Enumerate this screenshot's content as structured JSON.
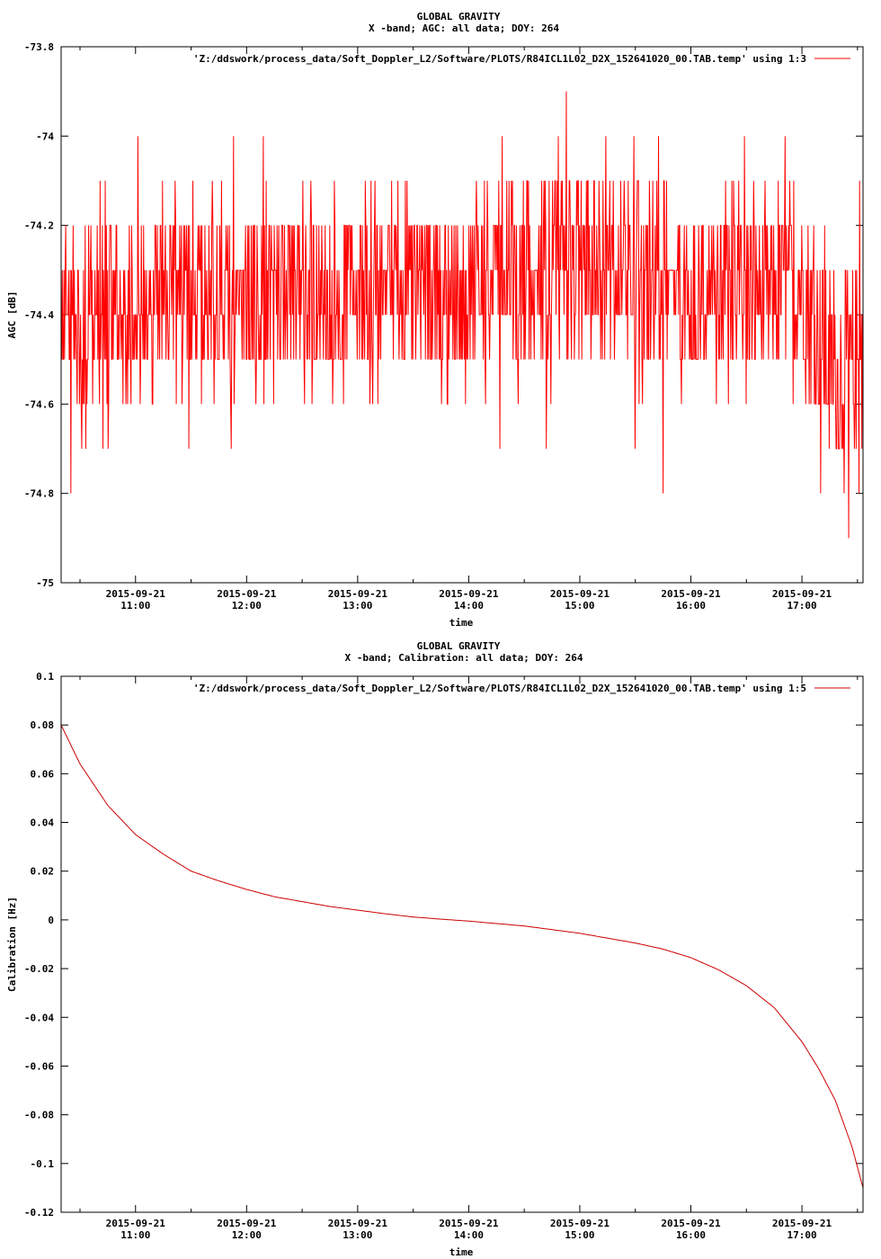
{
  "chart_data": [
    {
      "type": "line",
      "title": "GLOBAL GRAVITY",
      "subtitle": "X -band; AGC: all data; DOY: 264",
      "xlabel": "time",
      "ylabel": "AGC [dB]",
      "ylim": [
        -75,
        -73.8
      ],
      "yticks": [
        -73.8,
        -74,
        -74.2,
        -74.4,
        -74.6,
        -74.8,
        -75
      ],
      "ytick_labels": [
        "-73.8",
        "-74",
        "-74.2",
        "-74.4",
        "-74.6",
        "-74.8",
        "-75"
      ],
      "xlim_hours": [
        10.33,
        17.55
      ],
      "xticks_hours": [
        11,
        12,
        13,
        14,
        15,
        16,
        17
      ],
      "xtick_dates": [
        "2015-09-21",
        "2015-09-21",
        "2015-09-21",
        "2015-09-21",
        "2015-09-21",
        "2015-09-21",
        "2015-09-21"
      ],
      "xtick_times": [
        "11:00",
        "12:00",
        "13:00",
        "14:00",
        "15:00",
        "16:00",
        "17:00"
      ],
      "legend": "top-right",
      "series": [
        {
          "name": "'Z:/ddswork/process_data/Soft_Doppler_L2/Software/PLOTS/R84ICL1L02_D2X_152641020_00.TAB.temp' using 1:3",
          "color": "#ff0000",
          "noise_band": [
            -74.5,
            -74.2
          ],
          "baseline": -74.35,
          "step": 0.1,
          "x_hours": [
            10.33,
            10.5,
            10.7,
            11.0,
            11.5,
            12.0,
            12.5,
            13.0,
            13.5,
            14.0,
            14.5,
            15.0,
            15.5,
            16.0,
            16.5,
            17.0,
            17.3,
            17.55
          ],
          "y": [
            -74.4,
            -74.4,
            -74.4,
            -74.35,
            -74.35,
            -74.35,
            -74.35,
            -74.35,
            -74.35,
            -74.35,
            -74.3,
            -74.3,
            -74.3,
            -74.35,
            -74.35,
            -74.35,
            -74.55,
            -74.5
          ],
          "spikes": [
            {
              "x_hours": 10.42,
              "y": -74.8
            },
            {
              "x_hours": 10.55,
              "y": -74.7
            },
            {
              "x_hours": 11.02,
              "y": -74.0
            },
            {
              "x_hours": 11.48,
              "y": -74.7
            },
            {
              "x_hours": 11.88,
              "y": -74.0
            },
            {
              "x_hours": 11.86,
              "y": -74.7
            },
            {
              "x_hours": 12.15,
              "y": -74.0
            },
            {
              "x_hours": 13.18,
              "y": -74.6
            },
            {
              "x_hours": 14.28,
              "y": -74.7
            },
            {
              "x_hours": 14.3,
              "y": -74.0
            },
            {
              "x_hours": 14.7,
              "y": -74.7
            },
            {
              "x_hours": 14.88,
              "y": -73.9
            },
            {
              "x_hours": 15.5,
              "y": -74.7
            },
            {
              "x_hours": 15.75,
              "y": -74.8
            },
            {
              "x_hours": 16.48,
              "y": -74.0
            },
            {
              "x_hours": 16.85,
              "y": -74.0
            },
            {
              "x_hours": 17.38,
              "y": -74.8
            },
            {
              "x_hours": 17.42,
              "y": -74.9
            },
            {
              "x_hours": 17.52,
              "y": -74.1
            }
          ]
        }
      ]
    },
    {
      "type": "line",
      "title": "GLOBAL GRAVITY",
      "subtitle": "X -band; Calibration: all data; DOY: 264",
      "xlabel": "time",
      "ylabel": "Calibration [Hz]",
      "ylim": [
        -0.12,
        0.1
      ],
      "yticks": [
        0.1,
        0.08,
        0.06,
        0.04,
        0.02,
        0,
        -0.02,
        -0.04,
        -0.06,
        -0.08,
        -0.1,
        -0.12
      ],
      "ytick_labels": [
        "0.1",
        "0.08",
        "0.06",
        "0.04",
        "0.02",
        "0",
        "-0.02",
        "-0.04",
        "-0.06",
        "-0.08",
        "-0.1",
        "-0.12"
      ],
      "xlim_hours": [
        10.33,
        17.55
      ],
      "xticks_hours": [
        11,
        12,
        13,
        14,
        15,
        16,
        17
      ],
      "xtick_dates": [
        "2015-09-21",
        "2015-09-21",
        "2015-09-21",
        "2015-09-21",
        "2015-09-21",
        "2015-09-21",
        "2015-09-21"
      ],
      "xtick_times": [
        "11:00",
        "12:00",
        "13:00",
        "14:00",
        "15:00",
        "16:00",
        "17:00"
      ],
      "legend": "top-right",
      "series": [
        {
          "name": "'Z:/ddswork/process_data/Soft_Doppler_L2/Software/PLOTS/R84ICL1L02_D2X_152641020_00.TAB.temp' using 1:5",
          "color": "#cc0000",
          "x_hours": [
            10.33,
            10.5,
            10.75,
            11.0,
            11.25,
            11.5,
            11.75,
            12.0,
            12.25,
            12.5,
            12.75,
            13.0,
            13.25,
            13.5,
            13.75,
            14.0,
            14.25,
            14.5,
            14.75,
            15.0,
            15.25,
            15.5,
            15.75,
            16.0,
            16.25,
            16.5,
            16.75,
            17.0,
            17.15,
            17.3,
            17.45,
            17.55
          ],
          "y": [
            0.08,
            0.064,
            0.047,
            0.035,
            0.027,
            0.02,
            0.016,
            0.0125,
            0.0095,
            0.0075,
            0.0055,
            0.004,
            0.0025,
            0.0012,
            0.0003,
            -0.0005,
            -0.0015,
            -0.0025,
            -0.004,
            -0.0055,
            -0.0075,
            -0.0095,
            -0.012,
            -0.0155,
            -0.0205,
            -0.027,
            -0.036,
            -0.05,
            -0.061,
            -0.074,
            -0.093,
            -0.11
          ]
        }
      ]
    }
  ]
}
